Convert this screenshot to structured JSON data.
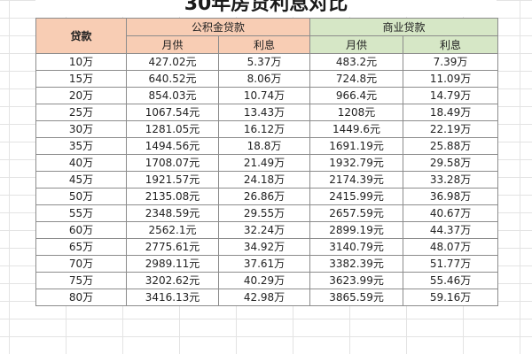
{
  "title": "30年房贷利息对比",
  "header": {
    "loan": "贷款",
    "provident_fund": "公积金贷款",
    "commercial": "商业贷款",
    "monthly": "月供",
    "interest": "利息"
  },
  "rows": [
    {
      "loan": "10万",
      "fund_monthly": "427.02元",
      "fund_interest": "5.37万",
      "comm_monthly": "483.2元",
      "comm_interest": "7.39万"
    },
    {
      "loan": "15万",
      "fund_monthly": "640.52元",
      "fund_interest": "8.06万",
      "comm_monthly": "724.8元",
      "comm_interest": "11.09万"
    },
    {
      "loan": "20万",
      "fund_monthly": "854.03元",
      "fund_interest": "10.74万",
      "comm_monthly": "966.4元",
      "comm_interest": "14.79万"
    },
    {
      "loan": "25万",
      "fund_monthly": "1067.54元",
      "fund_interest": "13.43万",
      "comm_monthly": "1208元",
      "comm_interest": "18.49万"
    },
    {
      "loan": "30万",
      "fund_monthly": "1281.05元",
      "fund_interest": "16.12万",
      "comm_monthly": "1449.6元",
      "comm_interest": "22.19万"
    },
    {
      "loan": "35万",
      "fund_monthly": "1494.56元",
      "fund_interest": "18.8万",
      "comm_monthly": "1691.19元",
      "comm_interest": "25.88万"
    },
    {
      "loan": "40万",
      "fund_monthly": "1708.07元",
      "fund_interest": "21.49万",
      "comm_monthly": "1932.79元",
      "comm_interest": "29.58万"
    },
    {
      "loan": "45万",
      "fund_monthly": "1921.57元",
      "fund_interest": "24.18万",
      "comm_monthly": "2174.39元",
      "comm_interest": "33.28万"
    },
    {
      "loan": "50万",
      "fund_monthly": "2135.08元",
      "fund_interest": "26.86万",
      "comm_monthly": "2415.99元",
      "comm_interest": "36.98万"
    },
    {
      "loan": "55万",
      "fund_monthly": "2348.59元",
      "fund_interest": "29.55万",
      "comm_monthly": "2657.59元",
      "comm_interest": "40.67万"
    },
    {
      "loan": "60万",
      "fund_monthly": "2562.1元",
      "fund_interest": "32.24万",
      "comm_monthly": "2899.19元",
      "comm_interest": "44.37万"
    },
    {
      "loan": "65万",
      "fund_monthly": "2775.61元",
      "fund_interest": "34.92万",
      "comm_monthly": "3140.79元",
      "comm_interest": "48.07万"
    },
    {
      "loan": "70万",
      "fund_monthly": "2989.11元",
      "fund_interest": "37.61万",
      "comm_monthly": "3382.39元",
      "comm_interest": "51.77万"
    },
    {
      "loan": "75万",
      "fund_monthly": "3202.62元",
      "fund_interest": "40.29万",
      "comm_monthly": "3623.99元",
      "comm_interest": "55.46万"
    },
    {
      "loan": "80万",
      "fund_monthly": "3416.13元",
      "fund_interest": "42.98万",
      "comm_monthly": "3865.59元",
      "comm_interest": "59.16万"
    }
  ],
  "colors": {
    "fund_header": "#f8cdb4",
    "commercial_header": "#d6e7c6",
    "border": "#8c8c8c"
  }
}
